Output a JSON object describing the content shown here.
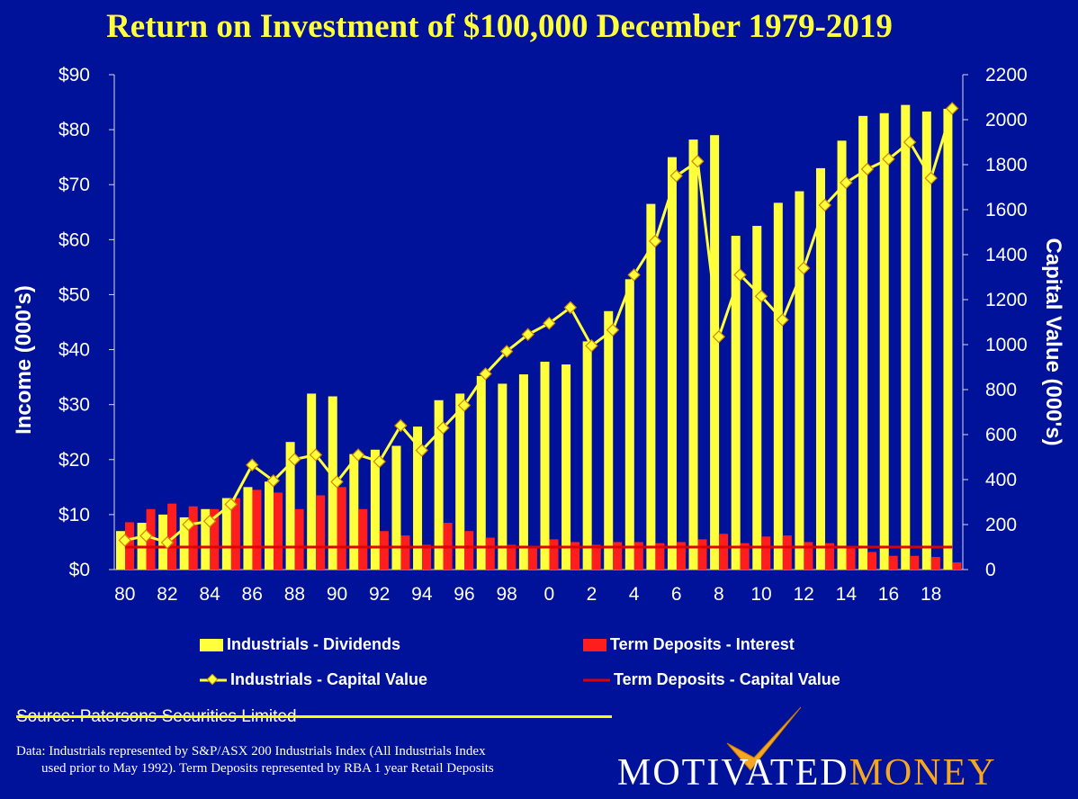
{
  "title": "Return on Investment of  $100,000 December 1979-2019",
  "chart_data": {
    "type": "bar",
    "categories": [
      "80",
      "81",
      "82",
      "83",
      "84",
      "85",
      "86",
      "87",
      "88",
      "89",
      "90",
      "91",
      "92",
      "93",
      "94",
      "95",
      "96",
      "97",
      "98",
      "99",
      "0",
      "1",
      "2",
      "3",
      "4",
      "5",
      "6",
      "7",
      "8",
      "9",
      "10",
      "11",
      "12",
      "13",
      "14",
      "15",
      "16",
      "17",
      "18",
      "19"
    ],
    "x_tick_labels": [
      "80",
      "82",
      "84",
      "86",
      "88",
      "90",
      "92",
      "94",
      "96",
      "98",
      "0",
      "2",
      "4",
      "6",
      "8",
      "10",
      "12",
      "14",
      "16",
      "18"
    ],
    "y_left": {
      "label": "Income (000's)",
      "ylim": [
        0,
        90
      ],
      "ticks": [
        "$0",
        "$10",
        "$20",
        "$30",
        "$40",
        "$50",
        "$60",
        "$70",
        "$80",
        "$90"
      ]
    },
    "y_right": {
      "label": "Capital Value (000's)",
      "ylim": [
        0,
        2200
      ],
      "ticks": [
        "0",
        "200",
        "400",
        "600",
        "800",
        "1000",
        "1200",
        "1400",
        "1600",
        "1800",
        "2000",
        "2200"
      ]
    },
    "series": [
      {
        "name": "Industrials - Dividends",
        "type": "bar",
        "axis": "left",
        "color": "#ffff3c",
        "values": [
          7,
          8.5,
          10,
          9.5,
          11,
          13,
          15,
          16,
          23.2,
          32,
          31.5,
          21,
          21.8,
          22.5,
          26,
          30.8,
          32,
          35.2,
          33.8,
          35.5,
          37.8,
          37.3,
          41.5,
          47,
          52.8,
          66.5,
          75,
          78.2,
          79,
          60.7,
          62.5,
          66.7,
          68.8,
          73,
          78,
          82.5,
          83,
          84.5,
          83.3,
          83.8
        ]
      },
      {
        "name": "Term Deposits - Interest",
        "type": "bar",
        "axis": "left",
        "color": "#ff1e1e",
        "values": [
          8.6,
          11,
          12,
          11.5,
          11,
          13,
          14.5,
          14,
          11,
          13.5,
          15,
          11,
          7,
          6.2,
          4.5,
          8.5,
          7,
          5.8,
          4.5,
          4.2,
          5.5,
          5,
          4.5,
          5,
          5,
          4.8,
          5,
          5.5,
          6.5,
          4.8,
          6,
          6.2,
          5,
          4.8,
          4,
          3.2,
          2.5,
          2.5,
          2.3,
          1.3
        ]
      },
      {
        "name": "Industrials - Capital Value",
        "type": "line",
        "axis": "right",
        "color": "#ffff3c",
        "values": [
          130,
          150,
          120,
          200,
          215,
          290,
          465,
          395,
          490,
          510,
          390,
          510,
          480,
          640,
          530,
          630,
          730,
          870,
          970,
          1045,
          1095,
          1165,
          995,
          1065,
          1310,
          1460,
          1750,
          1815,
          1035,
          1310,
          1215,
          1110,
          1340,
          1620,
          1720,
          1780,
          1825,
          1900,
          1740,
          2050
        ]
      },
      {
        "name": "Term Deposits - Capital Value",
        "type": "line",
        "axis": "right",
        "color": "#dd0000",
        "values": [
          100,
          100,
          100,
          100,
          100,
          100,
          100,
          100,
          100,
          100,
          100,
          100,
          100,
          100,
          100,
          100,
          100,
          100,
          100,
          100,
          100,
          100,
          100,
          100,
          100,
          100,
          100,
          100,
          100,
          100,
          100,
          100,
          100,
          100,
          100,
          100,
          100,
          100,
          100,
          100
        ]
      }
    ],
    "legend": [
      "Industrials - Dividends",
      "Term Deposits - Interest",
      "Industrials - Capital Value",
      "Term Deposits - Capital Value"
    ],
    "legend_position": "bottom"
  },
  "source": "Source: Patersons Securities Limited",
  "note_line1": "Data: Industrials represented by S&P/ASX 200 Industrials Index (All  Industrials Index",
  "note_line2": "used prior to May 1992).  Term Deposits represented by RBA 1 year Retail Deposits",
  "logo": {
    "word1": "MOTIVATED",
    "word2": "MONEY",
    "colors": {
      "word1": "#ffffff",
      "word2": "#f5a623"
    }
  }
}
